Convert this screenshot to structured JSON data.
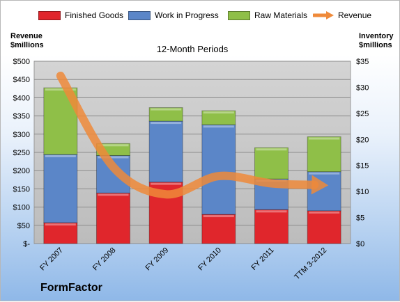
{
  "legend": {
    "items": [
      {
        "label": "Finished Goods",
        "color": "#e0262c"
      },
      {
        "label": "Work in Progress",
        "color": "#5b86c8"
      },
      {
        "label": "Raw Materials",
        "color": "#8fbf48"
      },
      {
        "label": "Revenue",
        "color": "#ef8a3a"
      }
    ]
  },
  "axes": {
    "left_title_line1": "Revenue",
    "left_title_line2": "$millions",
    "right_title_line1": "Inventory",
    "right_title_line2": "$millions"
  },
  "company": "FormFactor",
  "chart_data": {
    "type": "bar",
    "subtype": "stacked-bar-with-line",
    "title": "12-Month Periods",
    "categories": [
      "FY 2007",
      "FY 2008",
      "FY 2009",
      "FY 2010",
      "FY 2011",
      "TTM 3-2012"
    ],
    "series": [
      {
        "name": "Finished Goods",
        "axis": "right",
        "values": [
          4.0,
          9.7,
          11.8,
          5.6,
          6.5,
          6.3
        ],
        "color": "#e0262c"
      },
      {
        "name": "Work in Progress",
        "axis": "right",
        "values": [
          13.1,
          7.2,
          11.7,
          17.2,
          5.9,
          7.5
        ],
        "color": "#5b86c8"
      },
      {
        "name": "Raw Materials",
        "axis": "right",
        "values": [
          12.8,
          2.3,
          2.6,
          2.7,
          6.0,
          6.7
        ],
        "color": "#8fbf48"
      },
      {
        "name": "Revenue",
        "axis": "left",
        "type": "line",
        "values": [
          460,
          210,
          135,
          185,
          165,
          160
        ],
        "color": "#ef8a3a"
      }
    ],
    "y_left": {
      "ylim": [
        0,
        500
      ],
      "ticks": [
        0,
        50,
        100,
        150,
        200,
        250,
        300,
        350,
        400,
        450,
        500
      ],
      "tick_labels": [
        "$-",
        "$50",
        "$100",
        "$150",
        "$200",
        "$250",
        "$300",
        "$350",
        "$400",
        "$450",
        "$500"
      ]
    },
    "y_right": {
      "ylim": [
        0,
        35
      ],
      "ticks": [
        0,
        5,
        10,
        15,
        20,
        25,
        30,
        35
      ],
      "tick_labels": [
        "$0",
        "$5",
        "$10",
        "$15",
        "$20",
        "$25",
        "$30",
        "$35"
      ]
    },
    "grid": true,
    "legend_position": "top"
  }
}
